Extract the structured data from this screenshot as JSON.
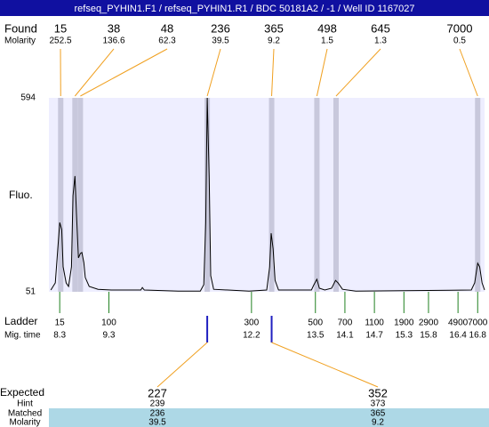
{
  "chart_data": {
    "type": "line",
    "title": "refseq_PYHIN1.F1 / refseq_PYHIN1.R1 / BDC 50181A2 / -1 / Well ID 1167027",
    "xlim": [
      8.08,
      16.94
    ],
    "ylim": [
      51,
      594
    ],
    "yticks": [
      594,
      51
    ],
    "y_label": "Fluo.",
    "background": "#eeeeff",
    "band_color": "#c8c8dc",
    "found": {
      "label": "Found",
      "molarity_label": "Molarity",
      "sizes": [
        15,
        38,
        48,
        236,
        365,
        498,
        645,
        7000
      ],
      "molarity": [
        252.5,
        136.6,
        62.3,
        39.5,
        9.2,
        1.5,
        1.3,
        0.5
      ],
      "times": [
        8.32,
        8.61,
        8.72,
        11.3,
        12.61,
        13.53,
        13.92,
        16.8
      ],
      "color": "#f0a020"
    },
    "ladder": {
      "label": "Ladder",
      "time_label": "Mig. time",
      "sizes": [
        15,
        100,
        300,
        500,
        700,
        1100,
        1900,
        2900,
        4900,
        7000
      ],
      "times": [
        8.3,
        9.3,
        12.2,
        13.5,
        14.1,
        14.7,
        15.3,
        15.8,
        16.4,
        16.8
      ],
      "color": "#208020"
    },
    "trace": {
      "color": "#000000",
      "x": [
        8.12,
        8.21,
        8.26,
        8.3,
        8.34,
        8.37,
        8.43,
        8.48,
        8.54,
        8.57,
        8.61,
        8.64,
        8.68,
        8.72,
        8.75,
        8.79,
        8.82,
        8.9,
        9.08,
        9.35,
        9.95,
        9.98,
        10.02,
        10.71,
        11.16,
        11.23,
        11.27,
        11.3,
        11.34,
        11.37,
        11.43,
        12.15,
        12.51,
        12.57,
        12.6,
        12.64,
        12.68,
        12.75,
        13.42,
        13.47,
        13.53,
        13.58,
        13.69,
        13.83,
        13.91,
        13.96,
        14.05,
        14.32,
        16.67,
        16.74,
        16.8,
        16.84,
        16.89,
        16.94
      ],
      "values": [
        56,
        76,
        171,
        245,
        225,
        121,
        76,
        66,
        121,
        320,
        375,
        270,
        146,
        158,
        161,
        133,
        91,
        66,
        58,
        56,
        56,
        63,
        56,
        53,
        53,
        71,
        245,
        594,
        370,
        96,
        58,
        53,
        56,
        121,
        215,
        171,
        83,
        56,
        56,
        71,
        86,
        61,
        56,
        61,
        83,
        76,
        58,
        53,
        56,
        76,
        131,
        121,
        76,
        56
      ]
    },
    "expected": {
      "label": "Expected",
      "values": [
        227,
        352
      ],
      "hint_label": "Hint",
      "hint": [
        239,
        373
      ],
      "matched_label": "Matched",
      "matched": [
        236,
        365
      ],
      "molarity_label": "Molarity",
      "molarity": [
        39.5,
        9.2
      ],
      "mark_color": "#2020c0",
      "row_color": "#add8e6"
    }
  }
}
